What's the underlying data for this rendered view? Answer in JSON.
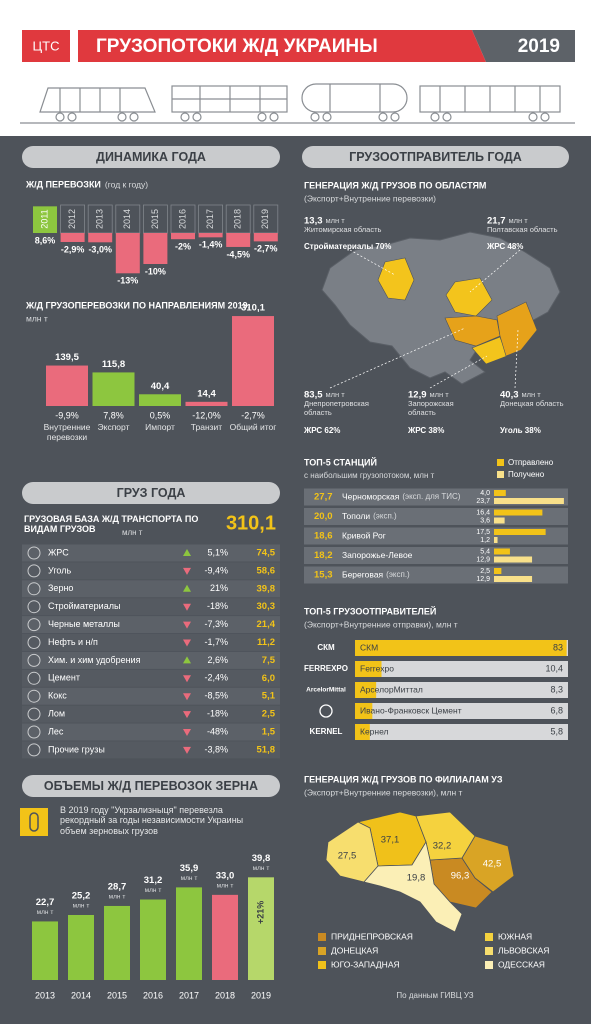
{
  "header": {
    "logo": "ЦТС",
    "title": "ГРУЗОПОТОКИ Ж/Д УКРАИНЫ",
    "year": "2019"
  },
  "dynamics": {
    "heading": "ДИНАМИКА ГОДА",
    "growth": {
      "title": "Ж/Д ПЕРЕВОЗКИ",
      "subtitle": "(год к году)",
      "categories": [
        "2011",
        "2012",
        "2013",
        "2014",
        "2015",
        "2016",
        "2017",
        "2018",
        "2019"
      ],
      "values": [
        8.6,
        -2.9,
        -3.0,
        -13,
        -10,
        -2,
        -1.4,
        -4.5,
        -2.7
      ],
      "value_labels": [
        "8,6%",
        "-2,9%",
        "-3,0%",
        "-13%",
        "-10%",
        "-2%",
        "-1,4%",
        "-4,5%",
        "-2,7%"
      ],
      "positive_color": "#8dc63f",
      "negative_color": "#ea6b7c"
    },
    "directions": {
      "title": "Ж/Д ГРУЗОПЕРЕВОЗКИ ПО НАПРАВЛЕНИЯМ 2019,",
      "unit": "млн т",
      "categories": [
        "Внутренние перевозки",
        "Экспорт",
        "Импорт",
        "Транзит",
        "Общий итог"
      ],
      "values": [
        139.5,
        115.8,
        40.4,
        14.4,
        310.1
      ],
      "value_labels": [
        "139,5",
        "115,8",
        "40,4",
        "14,4",
        "310,1"
      ],
      "changes": [
        -9.9,
        7.8,
        0.5,
        -12.0,
        -2.7
      ],
      "change_labels": [
        "-9,9%",
        "7,8%",
        "0,5%",
        "-12,0%",
        "-2,7%"
      ],
      "positive_color": "#8dc63f",
      "negative_color": "#ea6b7c"
    }
  },
  "cargo": {
    "heading": "ГРУЗ ГОДА",
    "title": "ГРУЗОВАЯ БАЗА Ж/Д ТРАНСПОРТА ПО ВИДАМ ГРУЗОВ",
    "unit": "млн т",
    "total": "310,1",
    "rows": [
      {
        "name": "ЖРС",
        "change": 5.1,
        "change_label": "5,1%",
        "value": "74,5"
      },
      {
        "name": "Уголь",
        "change": -9.4,
        "change_label": "-9,4%",
        "value": "58,6"
      },
      {
        "name": "Зерно",
        "change": 21,
        "change_label": "21%",
        "value": "39,8"
      },
      {
        "name": "Стройматериалы",
        "change": -18,
        "change_label": "-18%",
        "value": "30,3"
      },
      {
        "name": "Черные металлы",
        "change": -7.3,
        "change_label": "-7,3%",
        "value": "21,4"
      },
      {
        "name": "Нефть и н/п",
        "change": -1.7,
        "change_label": "-1,7%",
        "value": "11,2"
      },
      {
        "name": "Хим. и хим удобрения",
        "change": 2.6,
        "change_label": "2,6%",
        "value": "7,5"
      },
      {
        "name": "Цемент",
        "change": -2.4,
        "change_label": "-2,4%",
        "value": "6,0"
      },
      {
        "name": "Кокс",
        "change": -8.5,
        "change_label": "-8,5%",
        "value": "5,1"
      },
      {
        "name": "Лом",
        "change": -18,
        "change_label": "-18%",
        "value": "2,5"
      },
      {
        "name": "Лес",
        "change": -48,
        "change_label": "-48%",
        "value": "1,5"
      },
      {
        "name": "Прочие грузы",
        "change": -3.8,
        "change_label": "-3,8%",
        "value": "51,8"
      }
    ]
  },
  "grain": {
    "heading": "ОБЪЕМЫ Ж/Д ПЕРЕВОЗОК ЗЕРНА",
    "text": "В 2019 году \"Укрзализныця\" перевезла рекордный за годы независимости Украины объем зерновых грузов",
    "categories": [
      "2013",
      "2014",
      "2015",
      "2016",
      "2017",
      "2018",
      "2019"
    ],
    "values": [
      22.7,
      25.2,
      28.7,
      31.2,
      35.9,
      33.0,
      39.8
    ],
    "value_labels": [
      "22,7",
      "25,2",
      "28,7",
      "31,2",
      "35,9",
      "33,0",
      "39,8"
    ],
    "unit": "млн т",
    "colors": [
      "#8dc63f",
      "#8dc63f",
      "#8dc63f",
      "#8dc63f",
      "#8dc63f",
      "#ea6b7c",
      "#b6d76a"
    ],
    "annotation": "+21%"
  },
  "shipper": {
    "heading": "ГРУЗООТПРАВИТЕЛЬ ГОДА",
    "title": "ГЕНЕРАЦИЯ Ж/Д ГРУЗОВ ПО ОБЛАСТЯМ",
    "subtitle": "(Экспорт+Внутренние перевозки)",
    "regions": [
      {
        "value": "13,3",
        "unit": "млн т",
        "name": "Житомирская область",
        "cargo": "Стройматериалы 70%"
      },
      {
        "value": "21,7",
        "unit": "млн т",
        "name": "Полтавская область",
        "cargo": "ЖРС 48%"
      },
      {
        "value": "83,5",
        "unit": "млн т",
        "name": "Днепропетровская область",
        "cargo": "ЖРС 62%"
      },
      {
        "value": "12,9",
        "unit": "млн т",
        "name": "Запорожская область",
        "cargo": "ЖРС 38%"
      },
      {
        "value": "40,3",
        "unit": "млн т",
        "name": "Донецкая область",
        "cargo": "Уголь 38%"
      }
    ]
  },
  "stations": {
    "title": "ТОП-5 СТАНЦИЙ",
    "subtitle": "с наибольшим грузопотоком, млн т",
    "legend": [
      {
        "name": "Отправлено",
        "color": "#f2c318"
      },
      {
        "name": "Получено",
        "color": "#f8e08a"
      }
    ],
    "rows": [
      {
        "total": "27,7",
        "name": "Черноморская",
        "note": "(эксп. для ТИС)",
        "shipped": 4.0,
        "shipped_label": "4,0",
        "received": 23.7,
        "received_label": "23,7"
      },
      {
        "total": "20,0",
        "name": "Тополи",
        "note": "(эксп.)",
        "shipped": 16.4,
        "shipped_label": "16,4",
        "received": 3.6,
        "received_label": "3,6"
      },
      {
        "total": "18,6",
        "name": "Кривой Рог",
        "note": null,
        "shipped": 17.5,
        "shipped_label": "17,5",
        "received": 1.2,
        "received_label": "1,2"
      },
      {
        "total": "18,2",
        "name": "Запорожье-Левое",
        "note": null,
        "shipped": 5.4,
        "shipped_label": "5,4",
        "received": 12.9,
        "received_label": "12,9"
      },
      {
        "total": "15,3",
        "name": "Береговая",
        "note": "(эксп.)",
        "shipped": 2.5,
        "shipped_label": "2,5",
        "received": 12.9,
        "received_label": "12,9"
      }
    ]
  },
  "shippers": {
    "title": "ТОП-5 ГРУЗООТПРАВИТЕЛЕЙ",
    "subtitle": "(Экспорт+Внутренние отправки), млн т",
    "color": "#f2c318",
    "rows": [
      {
        "logo": "СКМ",
        "name": "СКМ",
        "value": 83,
        "value_label": "83"
      },
      {
        "logo": "FERREXPO",
        "name": "Ferrexpo",
        "value": 10.4,
        "value_label": "10,4"
      },
      {
        "logo": "ArcelorMittal",
        "name": "АрселорМиттал",
        "value": 8.3,
        "value_label": "8,3"
      },
      {
        "logo": null,
        "name": "Ивано-Франковск Цемент",
        "value": 6.8,
        "value_label": "6,8"
      },
      {
        "logo": "KERNEL",
        "name": "Кернел",
        "value": 5.8,
        "value_label": "5,8"
      }
    ]
  },
  "branches": {
    "title": "ГЕНЕРАЦИЯ Ж/Д ГРУЗОВ ПО ФИЛИАЛАМ УЗ",
    "subtitle": "(Экспорт+Внутренние перевозки), млн т",
    "items": [
      {
        "name": "ПРИДНЕПРОВСКАЯ",
        "value": "96,3",
        "color": "#c98a22"
      },
      {
        "name": "ДОНЕЦКАЯ",
        "value": "42,5",
        "color": "#d9a425"
      },
      {
        "name": "ЮГО-ЗАПАДНАЯ",
        "value": "37,1",
        "color": "#f0c11a"
      },
      {
        "name": "ЮЖНАЯ",
        "value": "32,2",
        "color": "#f5d23e"
      },
      {
        "name": "ЛЬВОВСКАЯ",
        "value": "27,5",
        "color": "#f7de6e"
      },
      {
        "name": "ОДЕССКАЯ",
        "value": "19,8",
        "color": "#fbefb6"
      }
    ]
  },
  "source": "По данным ГИВЦ УЗ"
}
